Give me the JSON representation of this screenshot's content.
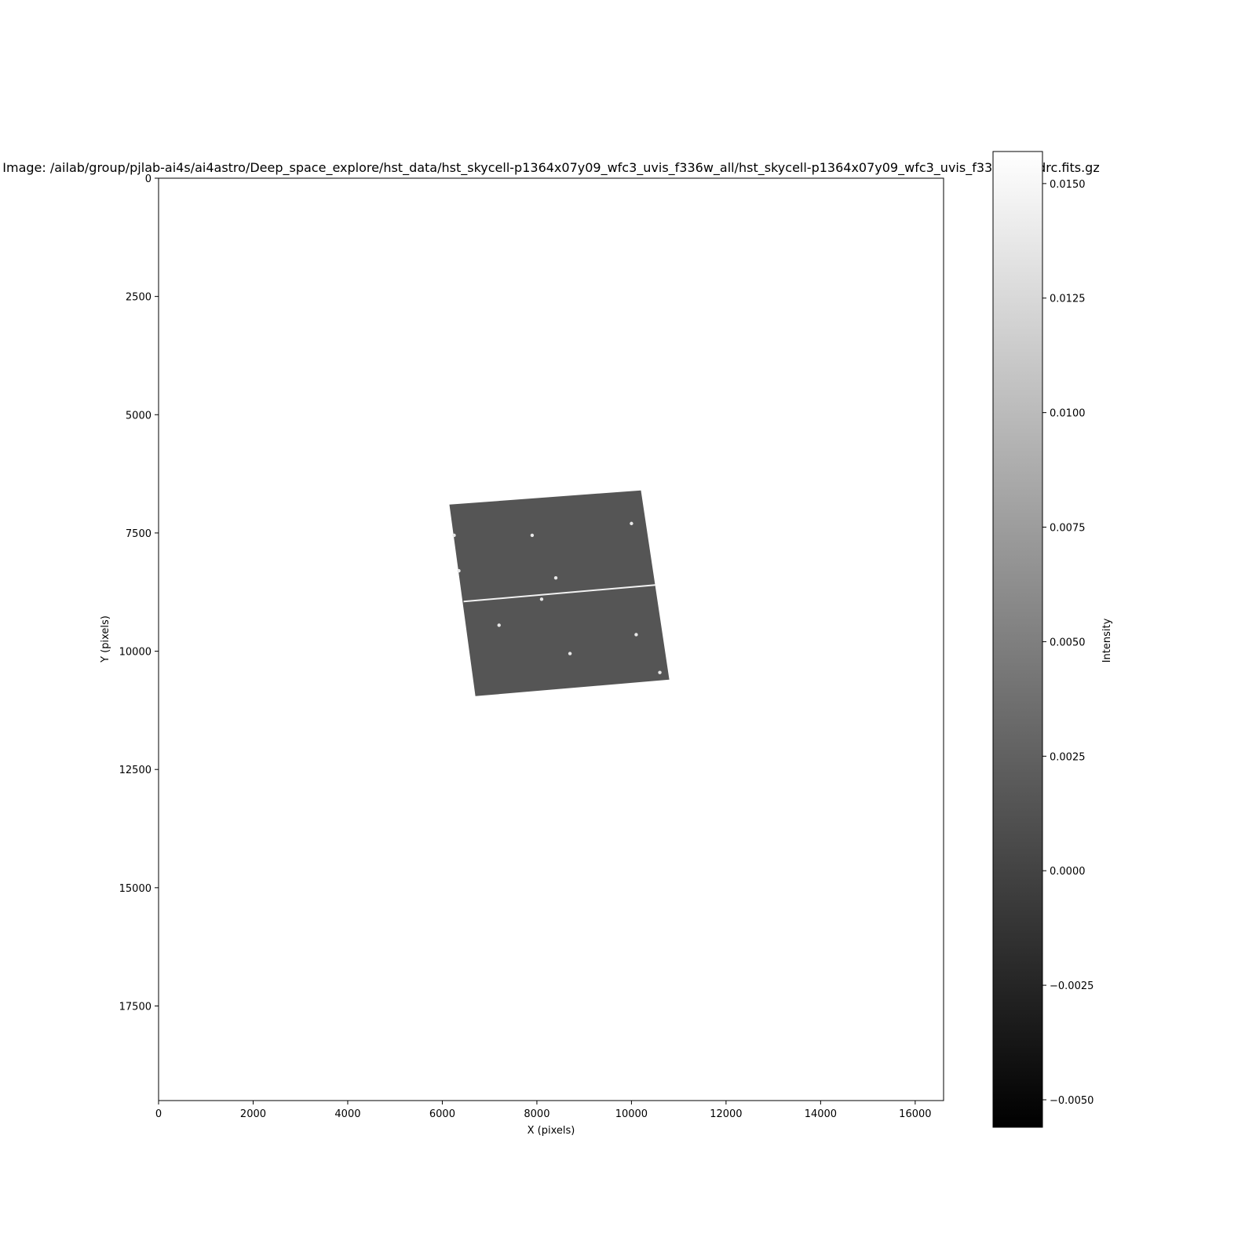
{
  "chart_data": {
    "type": "heatmap",
    "title": "Image: /ailab/group/pjlab-ai4s/ai4astro/Deep_space_explore/hst_data/hst_skycell-p1364x07y09_wfc3_uvis_f336w_all/hst_skycell-p1364x07y09_wfc3_uvis_f336w_all_drc.fits.gz",
    "xlabel": "X (pixels)",
    "ylabel": "Y (pixels)",
    "xlim": [
      0,
      16600
    ],
    "ylim": [
      19500,
      0
    ],
    "xticks": [
      0,
      2000,
      4000,
      6000,
      8000,
      10000,
      12000,
      14000,
      16000
    ],
    "yticks": [
      0,
      2500,
      5000,
      7500,
      10000,
      12500,
      15000,
      17500
    ],
    "colormap": "gray",
    "colorbar": {
      "label": "Intensity",
      "vmin": -0.0056,
      "vmax": 0.0157,
      "ticks": [
        -0.005,
        -0.0025,
        0.0,
        0.0025,
        0.005,
        0.0075,
        0.01,
        0.0125,
        0.015
      ],
      "tick_labels": [
        "−0.0050",
        "−0.0025",
        "0.0000",
        "0.0025",
        "0.0050",
        "0.0075",
        "0.0100",
        "0.0125",
        "0.0150"
      ]
    },
    "data_footprint": {
      "fill_color": "#555555",
      "corners": [
        [
          6150,
          6900
        ],
        [
          10200,
          6600
        ],
        [
          10800,
          10600
        ],
        [
          6700,
          10950
        ]
      ],
      "chip_gap": [
        [
          6450,
          8950
        ],
        [
          10500,
          8600
        ]
      ]
    },
    "sources": [
      {
        "x": 10000,
        "y": 7300
      },
      {
        "x": 7900,
        "y": 7550
      },
      {
        "x": 8100,
        "y": 8900
      },
      {
        "x": 10600,
        "y": 10450
      },
      {
        "x": 6350,
        "y": 8300
      },
      {
        "x": 8700,
        "y": 10050
      },
      {
        "x": 10100,
        "y": 9650
      },
      {
        "x": 6250,
        "y": 7550
      },
      {
        "x": 8400,
        "y": 8450
      },
      {
        "x": 7200,
        "y": 9450
      }
    ]
  }
}
